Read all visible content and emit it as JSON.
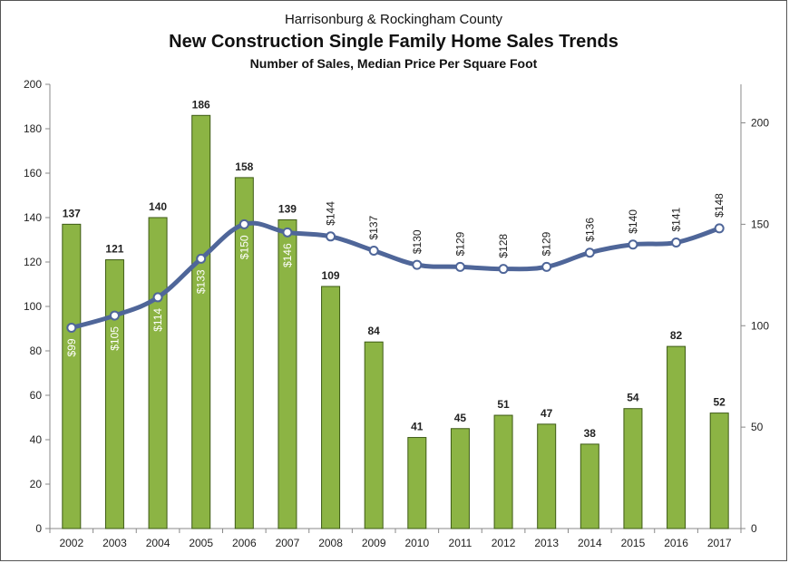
{
  "titles": {
    "super": "Harrisonburg & Rockingham County",
    "main": "New Construction Single Family Home Sales Trends",
    "sub": "Number of Sales, Median Price Per Square Foot"
  },
  "colors": {
    "bar": "#8cb444",
    "bar_edge": "#3d5a15",
    "line": "#4f6699",
    "marker_fill": "#ffffff",
    "bar_label": "#222222",
    "axis": "#888888"
  },
  "chart_data": {
    "type": "bar",
    "categories": [
      "2002",
      "2003",
      "2004",
      "2005",
      "2006",
      "2007",
      "2008",
      "2009",
      "2010",
      "2011",
      "2012",
      "2013",
      "2014",
      "2015",
      "2016",
      "2017"
    ],
    "series": [
      {
        "values": [
          137,
          121,
          140,
          186,
          158,
          139,
          109,
          84,
          41,
          45,
          51,
          47,
          38,
          54,
          82,
          52
        ],
        "axis": "left",
        "kind": "bar"
      },
      {
        "values": [
          99,
          105,
          114,
          133,
          150,
          146,
          144,
          137,
          130,
          129,
          128,
          129,
          136,
          140,
          141,
          148
        ],
        "axis": "right",
        "kind": "line"
      }
    ],
    "bar_labels": [
      "137",
      "121",
      "140",
      "186",
      "158",
      "139",
      "109",
      "84",
      "41",
      "45",
      "51",
      "47",
      "38",
      "54",
      "82",
      "52"
    ],
    "line_labels": [
      "$99",
      "$105",
      "$114",
      "$133",
      "$150",
      "$146",
      "$144",
      "$137",
      "$130",
      "$129",
      "$128",
      "$129",
      "$136",
      "$140",
      "$141",
      "$148"
    ],
    "ylim_left": [
      0,
      200
    ],
    "yticks_left": [
      0,
      20,
      40,
      60,
      80,
      100,
      120,
      140,
      160,
      180,
      200
    ],
    "ylim_right": [
      0,
      219
    ],
    "yticks_right": [
      0,
      50,
      100,
      150,
      200
    ],
    "grid": false,
    "legend": "none"
  }
}
